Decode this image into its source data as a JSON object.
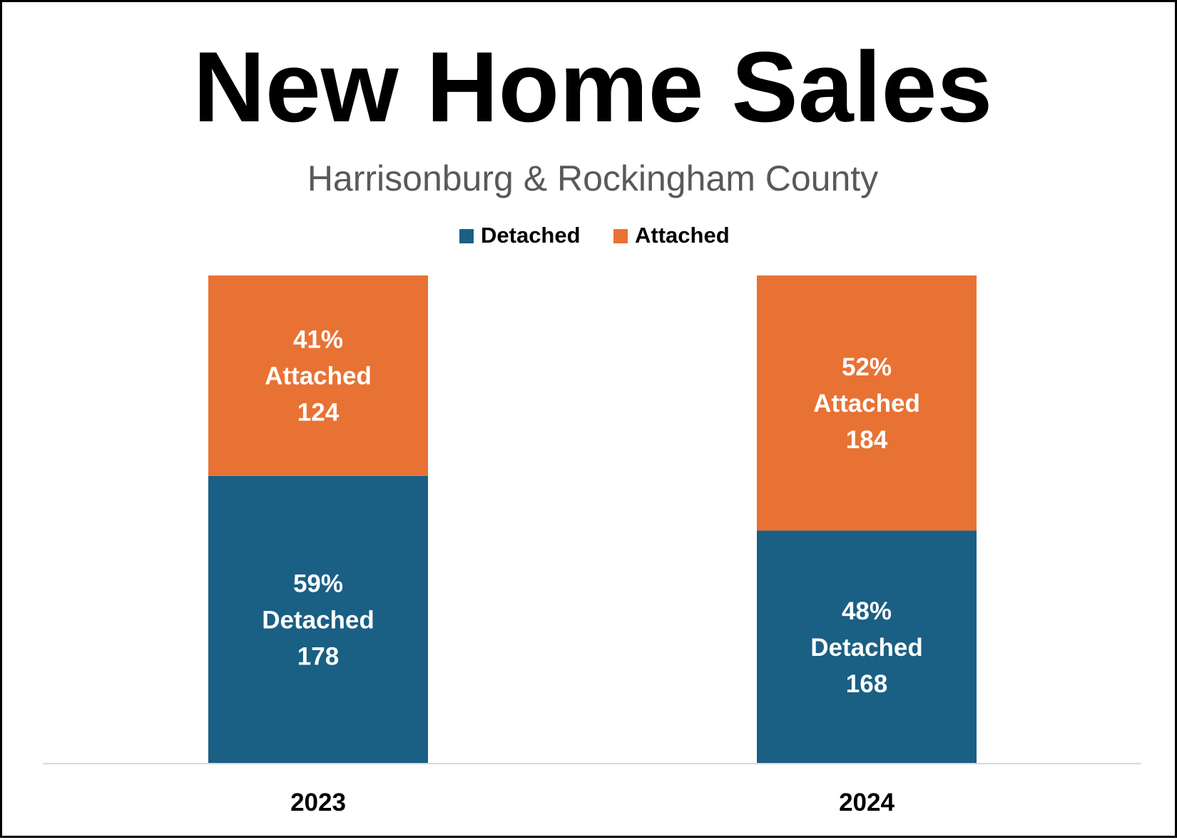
{
  "chart_data": {
    "type": "bar",
    "stacked": true,
    "title": "New Home Sales",
    "subtitle": "Harrisonburg & Rockingham County",
    "categories": [
      "2023",
      "2024"
    ],
    "legend": {
      "placement": "top",
      "entries": [
        "Detached",
        "Attached"
      ]
    },
    "series": [
      {
        "name": "Detached",
        "color": "#1a5f84",
        "values": [
          178,
          168
        ],
        "percents": [
          "59%",
          "48%"
        ],
        "labels": [
          [
            "59%",
            "Detached",
            "178"
          ],
          [
            "48%",
            "Detached",
            "168"
          ]
        ]
      },
      {
        "name": "Attached",
        "color": "#e87234",
        "values": [
          124,
          184
        ],
        "percents": [
          "41%",
          "52%"
        ],
        "labels": [
          [
            "41%",
            "Attached",
            "124"
          ],
          [
            "52%",
            "Attached",
            "184"
          ]
        ]
      }
    ],
    "grid": false
  }
}
